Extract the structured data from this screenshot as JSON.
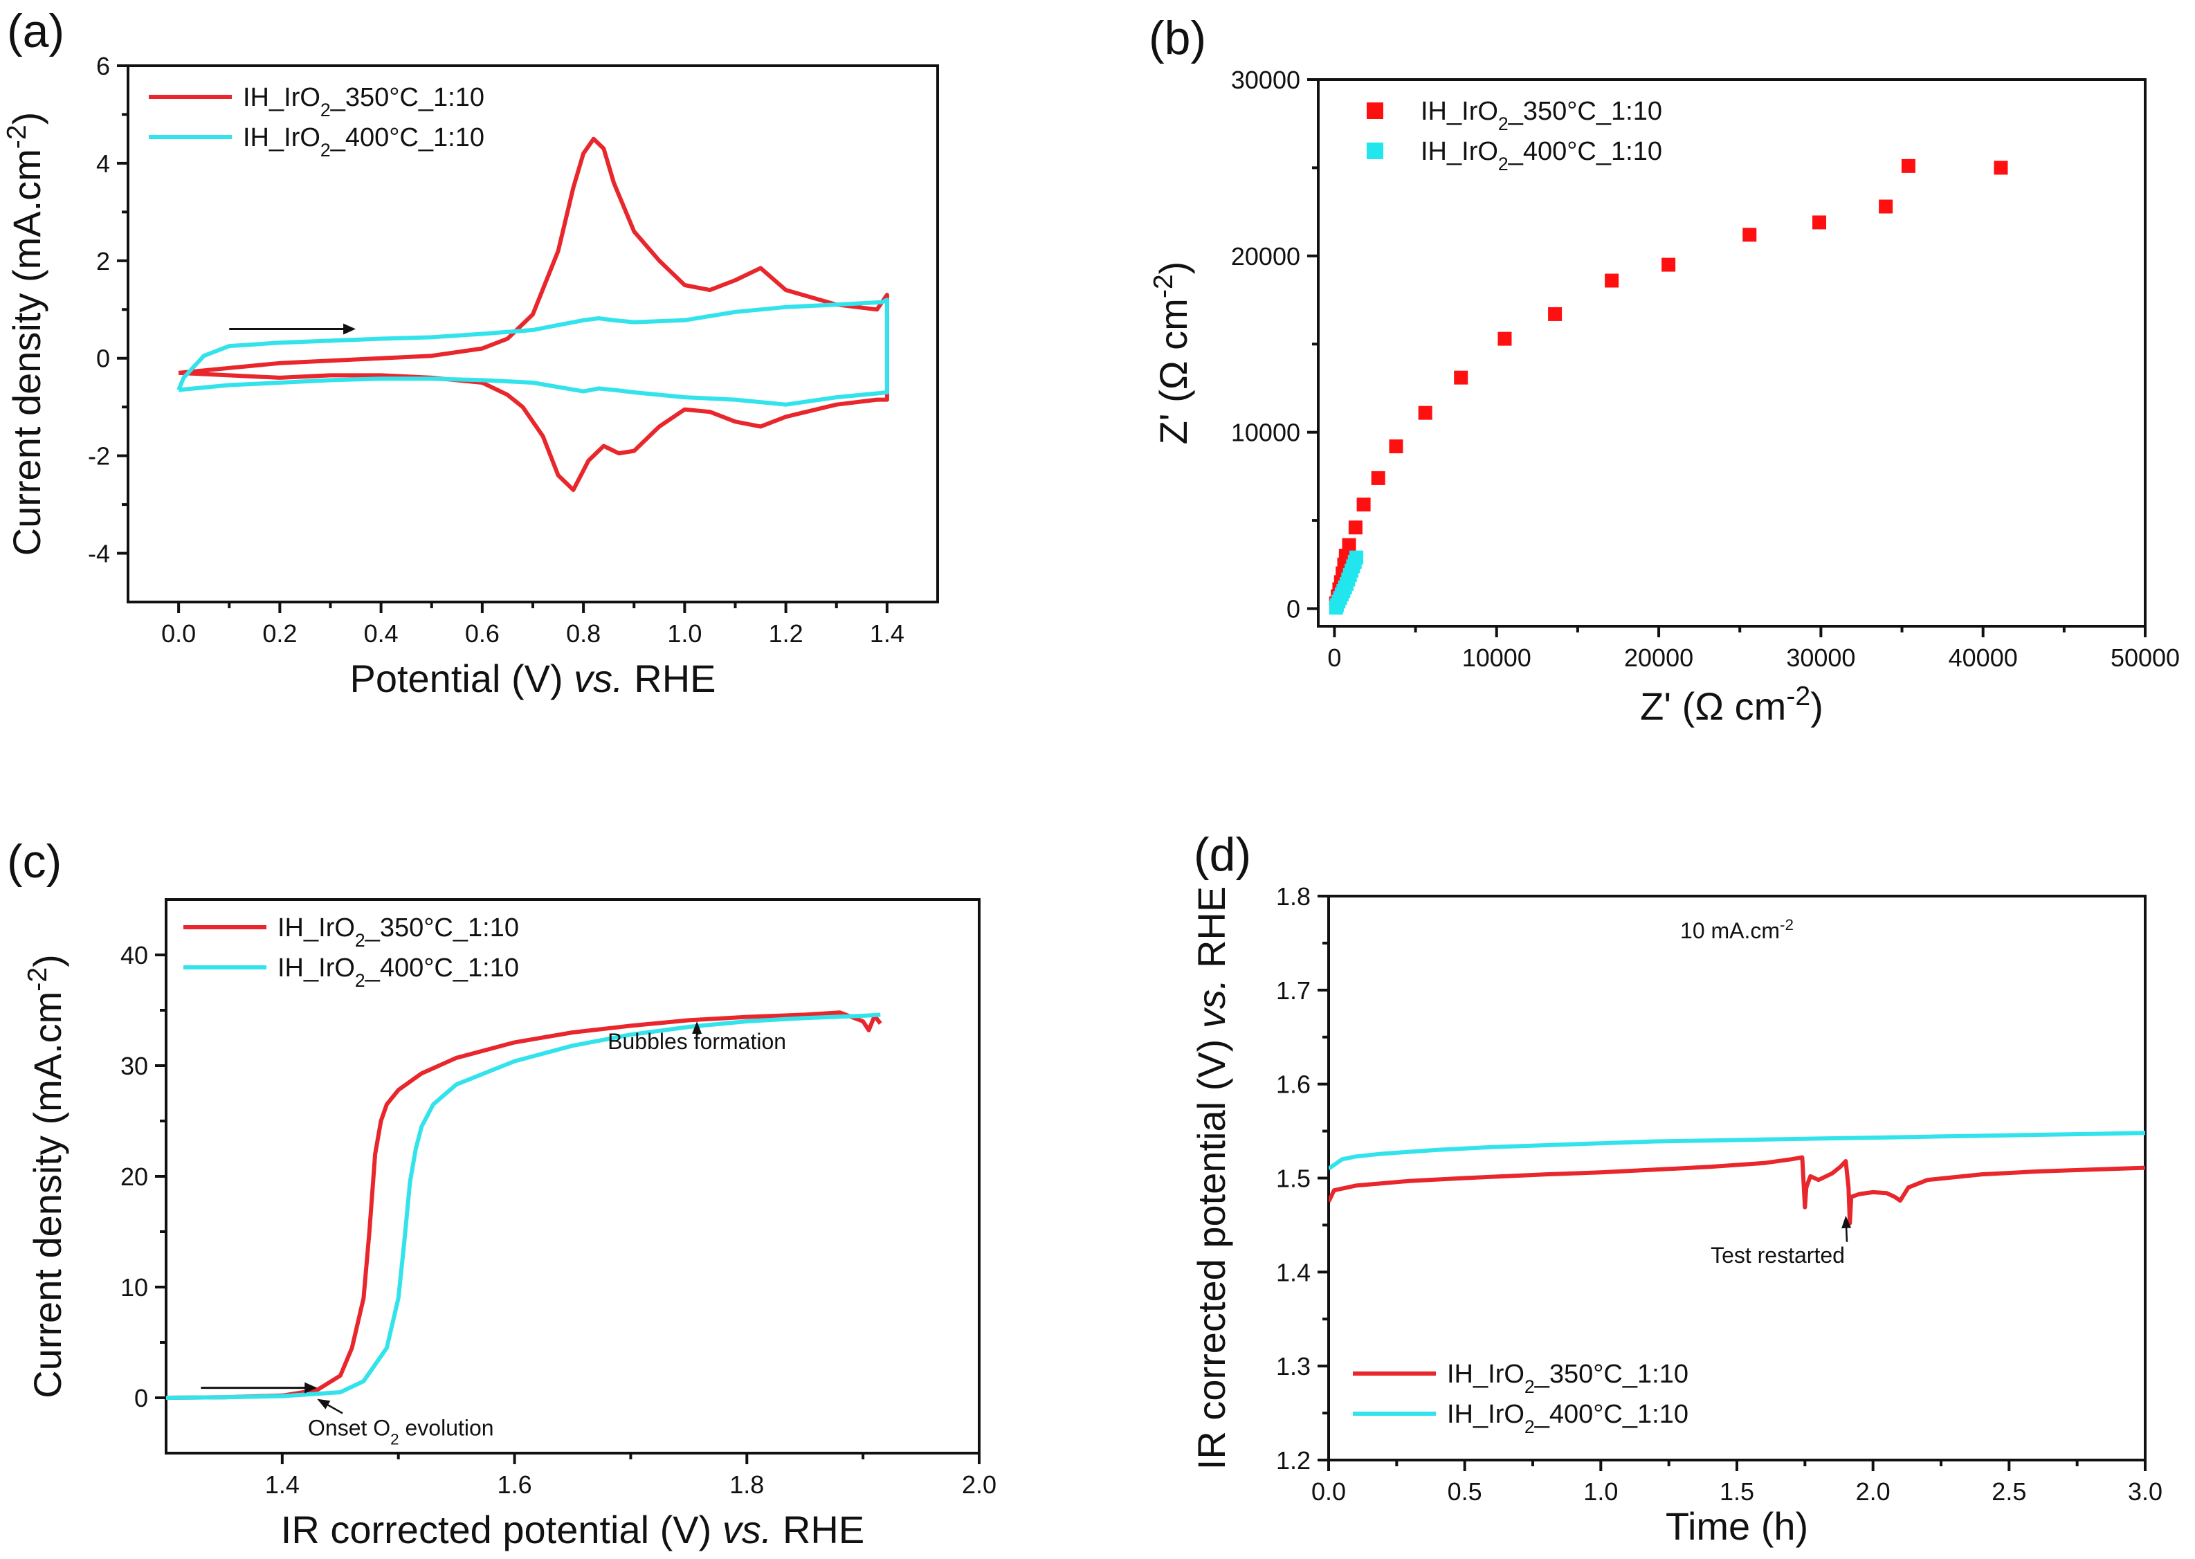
{
  "chart_data": [
    {
      "panel": "(a)",
      "type": "line",
      "xlabel": "Potential (V) vs. RHE",
      "xlabel_parts": [
        "Potential (V) ",
        "vs.",
        " RHE"
      ],
      "ylabel": "Current density (mA.cm-2)",
      "ylabel_parts": [
        "Current density (mA.cm",
        "-2",
        ")"
      ],
      "xlim": [
        -0.1,
        1.5
      ],
      "ylim": [
        -5,
        6
      ],
      "xticks": [
        0.0,
        0.2,
        0.4,
        0.6,
        0.8,
        1.0,
        1.2,
        1.4
      ],
      "xtick_labels": [
        "0.0",
        "0.2",
        "0.4",
        "0.6",
        "0.8",
        "1.0",
        "1.2",
        "1.4"
      ],
      "yticks": [
        -4,
        -2,
        0,
        2,
        4,
        6
      ],
      "ytick_labels": [
        "-4",
        "-2",
        "0",
        "2",
        "4",
        "6"
      ],
      "legend_position": "top-left",
      "series": [
        {
          "name": "IH_IrO2_350°C_1:10",
          "label_parts": [
            "IH_IrO",
            "2",
            "_350°C_1:10"
          ],
          "color": "#e8262b",
          "x": [
            0.0,
            0.1,
            0.2,
            0.3,
            0.4,
            0.5,
            0.6,
            0.65,
            0.7,
            0.75,
            0.78,
            0.8,
            0.82,
            0.84,
            0.86,
            0.9,
            0.95,
            1.0,
            1.05,
            1.1,
            1.15,
            1.2,
            1.3,
            1.38,
            1.4,
            1.4,
            1.38,
            1.3,
            1.2,
            1.15,
            1.1,
            1.05,
            1.0,
            0.95,
            0.9,
            0.87,
            0.84,
            0.81,
            0.78,
            0.75,
            0.72,
            0.68,
            0.65,
            0.6,
            0.5,
            0.4,
            0.3,
            0.2,
            0.1,
            0.0
          ],
          "y": [
            -0.3,
            -0.2,
            -0.1,
            -0.05,
            0.0,
            0.05,
            0.2,
            0.4,
            0.9,
            2.2,
            3.5,
            4.2,
            4.5,
            4.3,
            3.6,
            2.6,
            2.0,
            1.5,
            1.4,
            1.6,
            1.85,
            1.4,
            1.1,
            1.0,
            1.3,
            -0.85,
            -0.85,
            -0.95,
            -1.2,
            -1.4,
            -1.3,
            -1.1,
            -1.05,
            -1.4,
            -1.9,
            -1.95,
            -1.8,
            -2.1,
            -2.7,
            -2.4,
            -1.6,
            -1.0,
            -0.75,
            -0.5,
            -0.4,
            -0.35,
            -0.35,
            -0.4,
            -0.35,
            -0.3
          ]
        },
        {
          "name": "IH_IrO2_400°C_1:10",
          "label_parts": [
            "IH_IrO",
            "2",
            "_400°C_1:10"
          ],
          "color": "#33e3ec",
          "x": [
            0.0,
            0.01,
            0.05,
            0.1,
            0.2,
            0.3,
            0.4,
            0.5,
            0.6,
            0.7,
            0.75,
            0.8,
            0.83,
            0.86,
            0.9,
            1.0,
            1.1,
            1.2,
            1.3,
            1.39,
            1.4,
            1.4,
            1.38,
            1.3,
            1.2,
            1.1,
            1.0,
            0.9,
            0.86,
            0.83,
            0.8,
            0.7,
            0.6,
            0.5,
            0.4,
            0.3,
            0.2,
            0.1,
            0.05,
            0.0
          ],
          "y": [
            -0.65,
            -0.4,
            0.05,
            0.25,
            0.32,
            0.36,
            0.4,
            0.43,
            0.5,
            0.58,
            0.68,
            0.78,
            0.82,
            0.78,
            0.74,
            0.78,
            0.95,
            1.05,
            1.1,
            1.15,
            1.2,
            -0.7,
            -0.72,
            -0.8,
            -0.95,
            -0.85,
            -0.8,
            -0.7,
            -0.65,
            -0.62,
            -0.68,
            -0.5,
            -0.45,
            -0.42,
            -0.42,
            -0.45,
            -0.5,
            -0.55,
            -0.6,
            -0.65
          ]
        }
      ],
      "annotations": [
        {
          "type": "arrow",
          "from": [
            0.1,
            0.6
          ],
          "to": [
            0.35,
            0.6
          ],
          "text": ""
        }
      ]
    },
    {
      "panel": "(b)",
      "type": "scatter",
      "xlabel": "Z' (Ω cm-2)",
      "xlabel_parts": [
        "Z' (Ω cm",
        "-2",
        ")"
      ],
      "ylabel": "Z' (Ω cm-2)",
      "ylabel_parts": [
        "Z' (Ω cm",
        "-2",
        ")"
      ],
      "xlim": [
        -1000,
        50000
      ],
      "ylim": [
        -1000,
        30000
      ],
      "xticks": [
        0,
        10000,
        20000,
        30000,
        40000,
        50000
      ],
      "xtick_labels": [
        "0",
        "10000",
        "20000",
        "30000",
        "40000",
        "50000"
      ],
      "yticks": [
        0,
        10000,
        20000,
        30000
      ],
      "ytick_labels": [
        "0",
        "10000",
        "20000",
        "30000"
      ],
      "legend_position": "top-left",
      "series": [
        {
          "name": "IH_IrO2_350°C_1:10",
          "label_parts": [
            "IH_IrO",
            "2",
            "_350°C_1:10"
          ],
          "color": "#ff1010",
          "marker": "square",
          "x": [
            100,
            200,
            300,
            400,
            500,
            600,
            700,
            900,
            1300,
            1800,
            2700,
            3800,
            5600,
            7800,
            10500,
            13600,
            17100,
            20600,
            25600,
            29900,
            34000,
            35400,
            41100
          ],
          "y": [
            300,
            700,
            1100,
            1500,
            2000,
            2500,
            3000,
            3600,
            4600,
            5900,
            7400,
            9200,
            11100,
            13100,
            15300,
            16700,
            18600,
            19500,
            21200,
            21900,
            22800,
            25100,
            25000
          ]
        },
        {
          "name": "IH_IrO2_400°C_1:10",
          "label_parts": [
            "IH_IrO",
            "2",
            "_400°C_1:10"
          ],
          "color": "#22e6ee",
          "marker": "square",
          "x": [
            100,
            150,
            250,
            350,
            450,
            550,
            650,
            750,
            850,
            950,
            1050,
            1150,
            1250,
            1350
          ],
          "y": [
            50,
            200,
            400,
            600,
            800,
            1000,
            1200,
            1400,
            1650,
            1900,
            2150,
            2400,
            2650,
            2900
          ]
        }
      ]
    },
    {
      "panel": "(c)",
      "type": "line",
      "xlabel": "IR corrected potential (V) vs. RHE",
      "xlabel_parts": [
        "IR corrected potential (V) ",
        "vs.",
        " RHE"
      ],
      "ylabel": "Current density (mA.cm-2)",
      "ylabel_parts": [
        "Current density (mA.cm",
        "-2",
        ")"
      ],
      "xlim": [
        1.3,
        2.0
      ],
      "ylim": [
        -5,
        45
      ],
      "xticks": [
        1.4,
        1.6,
        1.8,
        2.0
      ],
      "xtick_labels": [
        "1.4",
        "1.6",
        "1.8",
        "2.0"
      ],
      "yticks": [
        0,
        10,
        20,
        30,
        40
      ],
      "ytick_labels": [
        "0",
        "10",
        "20",
        "30",
        "40"
      ],
      "legend_position": "top-left",
      "series": [
        {
          "name": "IH_IrO2_350°C_1:10",
          "label_parts": [
            "IH_IrO",
            "2",
            "_350°C_1:10"
          ],
          "color": "#e8262b",
          "x": [
            1.3,
            1.35,
            1.4,
            1.43,
            1.45,
            1.46,
            1.47,
            1.475,
            1.48,
            1.485,
            1.49,
            1.5,
            1.52,
            1.55,
            1.6,
            1.65,
            1.7,
            1.75,
            1.8,
            1.85,
            1.88,
            1.9,
            1.905,
            1.91,
            1.915
          ],
          "y": [
            0.0,
            0.05,
            0.2,
            0.7,
            2.0,
            4.5,
            9.0,
            15.0,
            22.0,
            25.0,
            26.5,
            27.8,
            29.3,
            30.7,
            32.1,
            33.0,
            33.6,
            34.1,
            34.4,
            34.6,
            34.8,
            34.0,
            33.2,
            34.5,
            33.8
          ]
        },
        {
          "name": "IH_IrO2_400°C_1:10",
          "label_parts": [
            "IH_IrO",
            "2",
            "_400°C_1:10"
          ],
          "color": "#33e3ec",
          "x": [
            1.3,
            1.35,
            1.4,
            1.45,
            1.47,
            1.49,
            1.5,
            1.505,
            1.51,
            1.515,
            1.52,
            1.53,
            1.55,
            1.6,
            1.65,
            1.7,
            1.75,
            1.8,
            1.85,
            1.9,
            1.915
          ],
          "y": [
            0.0,
            0.05,
            0.15,
            0.5,
            1.5,
            4.5,
            9.0,
            14.0,
            19.5,
            22.5,
            24.5,
            26.5,
            28.3,
            30.4,
            31.8,
            32.8,
            33.5,
            34.0,
            34.3,
            34.5,
            34.6
          ]
        }
      ],
      "annotations": [
        {
          "text": "Bubbles formation",
          "x": 1.757,
          "y": 31.5,
          "arrow_to": [
            1.757,
            34.0
          ]
        },
        {
          "text": "Onset O2 evolution",
          "text_parts": [
            "Onset O",
            "2",
            " evolution"
          ],
          "x": 1.44,
          "y": -3.4,
          "arrow_to": [
            1.43,
            -0.1
          ]
        },
        {
          "type": "arrow",
          "from": [
            1.33,
            0.9
          ],
          "to": [
            1.43,
            0.9
          ],
          "text": ""
        }
      ]
    },
    {
      "panel": "(d)",
      "type": "line",
      "xlabel": "Time (h)",
      "ylabel": "IR corrected potential (V) vs. RHE",
      "ylabel_parts": [
        "IR corrected potential (V) ",
        "vs.",
        " RHE"
      ],
      "xlim": [
        0.0,
        3.0
      ],
      "ylim": [
        1.2,
        1.8
      ],
      "xticks": [
        0.0,
        0.5,
        1.0,
        1.5,
        2.0,
        2.5,
        3.0
      ],
      "xtick_labels": [
        "0.0",
        "0.5",
        "1.0",
        "1.5",
        "2.0",
        "2.5",
        "3.0"
      ],
      "yticks": [
        1.2,
        1.3,
        1.4,
        1.5,
        1.6,
        1.7,
        1.8
      ],
      "ytick_labels": [
        "1.2",
        "1.3",
        "1.4",
        "1.5",
        "1.6",
        "1.7",
        "1.8"
      ],
      "legend_position": "bottom-left",
      "series": [
        {
          "name": "IH_IrO2_350°C_1:10",
          "label_parts": [
            "IH_IrO",
            "2",
            "_350°C_1:10"
          ],
          "color": "#e8262b",
          "x": [
            0.0,
            0.02,
            0.1,
            0.3,
            0.5,
            0.8,
            1.0,
            1.2,
            1.4,
            1.6,
            1.7,
            1.74,
            1.75,
            1.755,
            1.77,
            1.8,
            1.85,
            1.88,
            1.9,
            1.91,
            1.915,
            1.92,
            1.95,
            2.0,
            2.05,
            2.08,
            2.1,
            2.13,
            2.2,
            2.4,
            2.6,
            2.8,
            3.0
          ],
          "y": [
            1.475,
            1.487,
            1.492,
            1.497,
            1.5,
            1.504,
            1.506,
            1.509,
            1.512,
            1.516,
            1.52,
            1.522,
            1.469,
            1.49,
            1.502,
            1.498,
            1.505,
            1.512,
            1.518,
            1.49,
            1.452,
            1.48,
            1.483,
            1.485,
            1.484,
            1.48,
            1.476,
            1.49,
            1.498,
            1.504,
            1.507,
            1.509,
            1.511
          ]
        },
        {
          "name": "IH_IrO2_400°C_1:10",
          "label_parts": [
            "IH_IrO",
            "2",
            "_400°C_1:10"
          ],
          "color": "#33e3ec",
          "x": [
            0.0,
            0.05,
            0.1,
            0.2,
            0.4,
            0.6,
            0.8,
            1.0,
            1.2,
            1.4,
            1.6,
            1.8,
            2.0,
            2.2,
            2.4,
            2.6,
            2.8,
            3.0
          ],
          "y": [
            1.51,
            1.52,
            1.523,
            1.526,
            1.53,
            1.533,
            1.535,
            1.537,
            1.539,
            1.54,
            1.541,
            1.542,
            1.543,
            1.544,
            1.545,
            1.546,
            1.547,
            1.548
          ]
        }
      ],
      "annotations": [
        {
          "text": "10 mA.cm-2",
          "text_parts": [
            "10 mA.cm",
            "-2"
          ],
          "x": 1.5,
          "y": 1.755
        },
        {
          "text": "Test restarted",
          "x": 1.65,
          "y": 1.41,
          "arrow_to": [
            1.9,
            1.46
          ]
        }
      ]
    }
  ]
}
